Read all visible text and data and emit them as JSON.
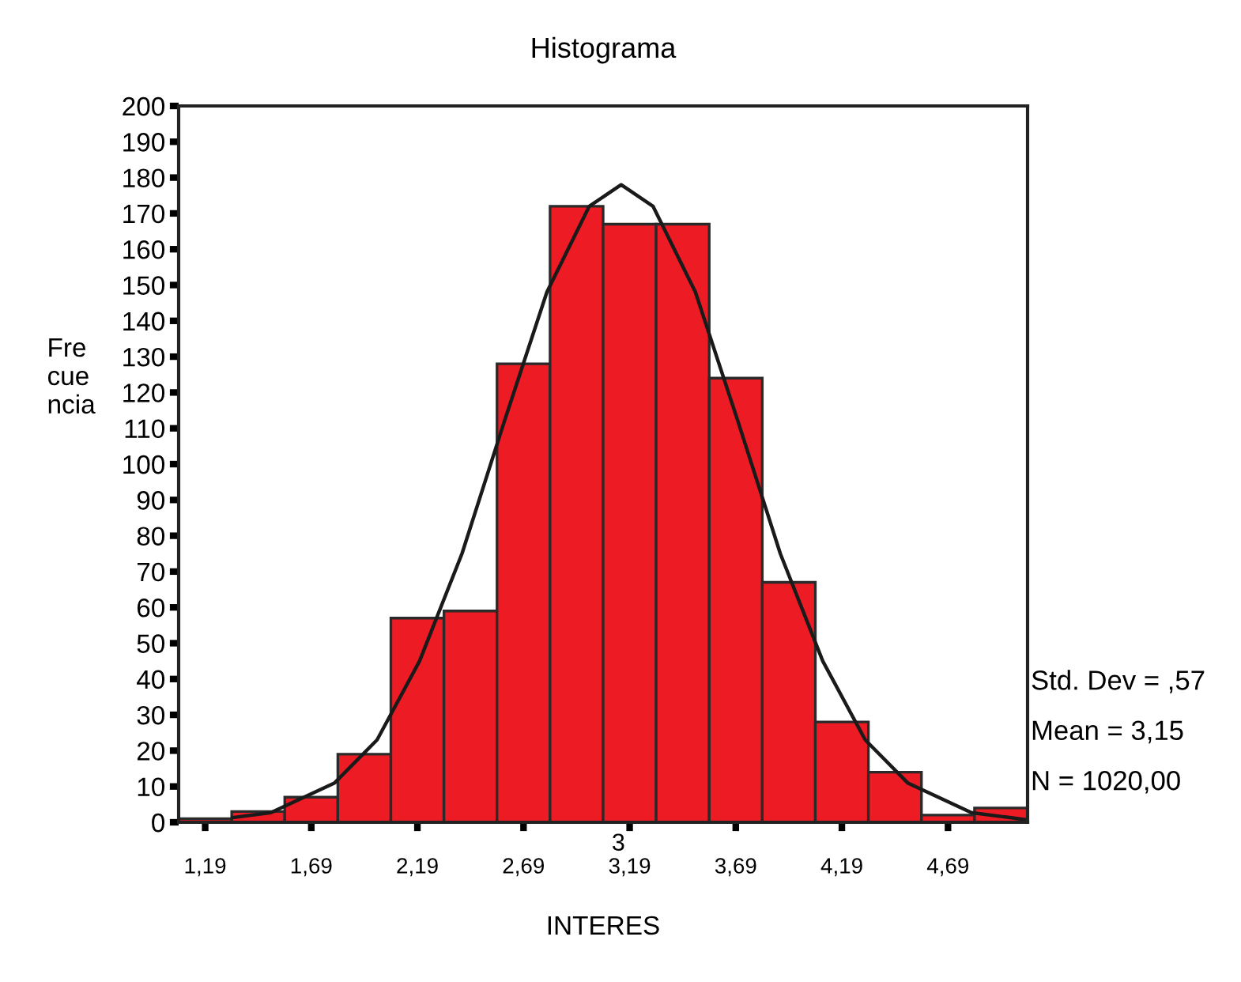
{
  "chart_data": {
    "type": "histogram",
    "title": "Histograma",
    "xlabel": "INTERES",
    "ylabel": "Fre\ncue\nncia",
    "bins": [
      1.065,
      1.315,
      1.565,
      1.815,
      2.065,
      2.315,
      2.565,
      2.815,
      3.065,
      3.315,
      3.565,
      3.815,
      4.065,
      4.315,
      4.565,
      4.815,
      5.065
    ],
    "values": [
      1,
      3,
      7,
      19,
      57,
      59,
      128,
      172,
      167,
      167,
      124,
      67,
      28,
      14,
      2,
      4
    ],
    "color": "#ed1c24",
    "series": [
      {
        "type": "line",
        "color": "#1a1a1a",
        "x": [
          1.32,
          1.5,
          1.8,
          2.0,
          2.2,
          2.4,
          2.6,
          2.8,
          3.0,
          3.15,
          3.3,
          3.5,
          3.7,
          3.9,
          4.1,
          4.3,
          4.5,
          4.8,
          5.06
        ],
        "values": [
          1.3,
          2.7,
          11,
          23,
          45,
          75,
          112,
          148,
          172,
          178,
          172,
          148,
          112,
          75,
          45,
          23,
          11,
          2.7,
          0.7
        ]
      }
    ],
    "xlim": [
      1.065,
      5.065
    ],
    "xticks": [
      {
        "value": 1.19,
        "label": "1,19"
      },
      {
        "value": 1.69,
        "label": "1,69"
      },
      {
        "value": 2.19,
        "label": "2,19"
      },
      {
        "value": 2.69,
        "label": "2,69"
      },
      {
        "value": 3.19,
        "label": "3,19"
      },
      {
        "value": 3.69,
        "label": "3,69"
      },
      {
        "value": 4.19,
        "label": "4,19"
      },
      {
        "value": 4.69,
        "label": "4,69"
      }
    ],
    "ylim": [
      0,
      200
    ],
    "yticks": [
      0,
      10,
      20,
      30,
      40,
      50,
      60,
      70,
      80,
      90,
      100,
      110,
      120,
      130,
      140,
      150,
      160,
      170,
      180,
      190,
      200
    ],
    "grid": false,
    "legend": false,
    "annotations": [
      "Std. Dev = ,57",
      "Mean = 3,15",
      "N = 1020,00",
      "3"
    ]
  }
}
